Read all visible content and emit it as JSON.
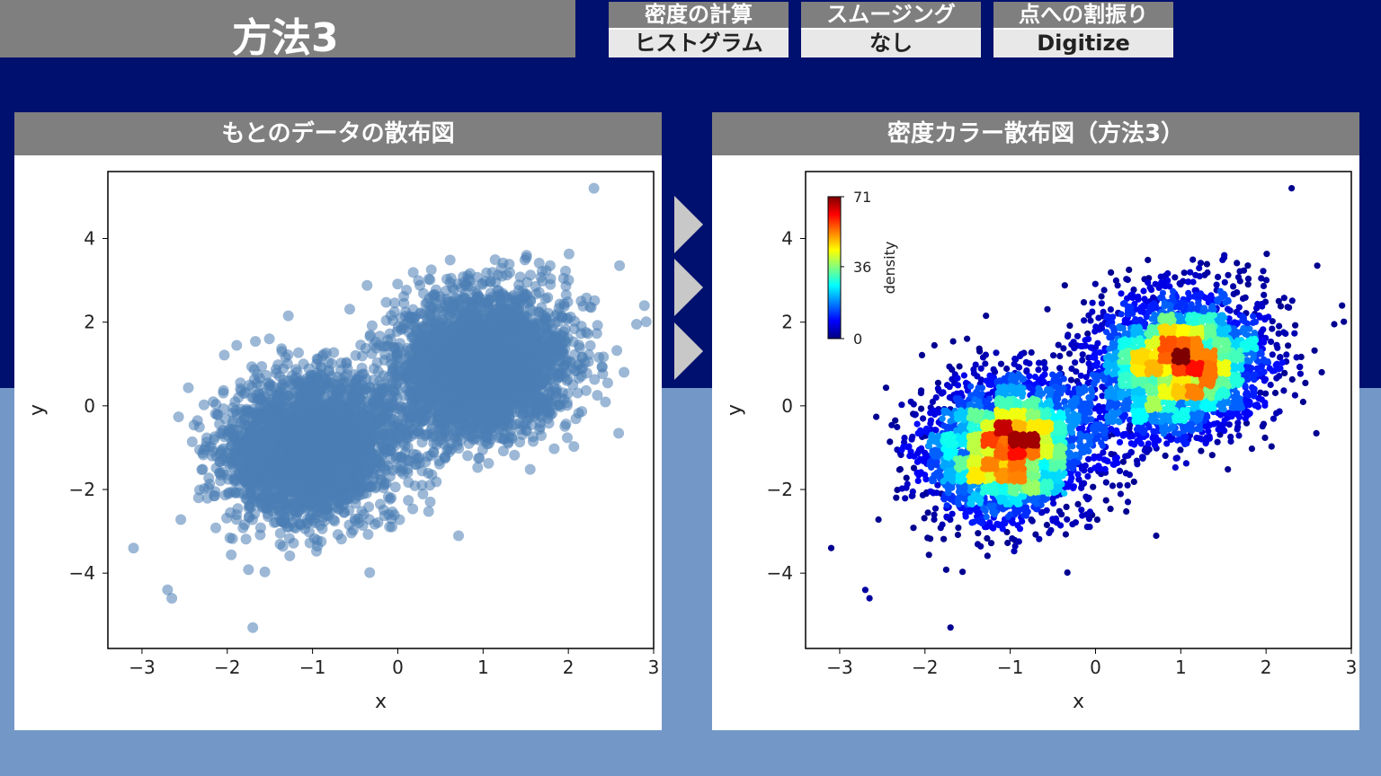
{
  "header": {
    "title": "方法3",
    "tags": [
      {
        "label": "密度の計算",
        "value": "ヒストグラム"
      },
      {
        "label": "スムージング",
        "value": "なし"
      },
      {
        "label": "点への割振り",
        "value": "Digitize"
      }
    ]
  },
  "panels": {
    "left_title": "もとのデータの散布図",
    "right_title": "密度カラー散布図（方法3）"
  },
  "colors": {
    "point_blue": "#4a7db5",
    "panel_gray": "#7f7f7f",
    "navy": "#00106e",
    "light_blue": "#7398c7",
    "colormap": [
      "#00007f",
      "#0000ff",
      "#007fff",
      "#00ffff",
      "#7fff7f",
      "#ffff00",
      "#ff7f00",
      "#ff0000",
      "#7f0000"
    ]
  },
  "chart_data": [
    {
      "type": "scatter",
      "title": "",
      "xlabel": "x",
      "ylabel": "y",
      "xlim": [
        -3.4,
        3.0
      ],
      "ylim": [
        -5.8,
        5.6
      ],
      "xticks": [
        "−3",
        "−2",
        "−1",
        "0",
        "1",
        "2",
        "3"
      ],
      "xtick_values": [
        -3,
        -2,
        -1,
        0,
        1,
        2,
        3
      ],
      "yticks": [
        "−4",
        "−2",
        "0",
        "2",
        "4"
      ],
      "ytick_values": [
        -4,
        -2,
        0,
        2,
        4
      ],
      "clusters": [
        {
          "center": [
            -1.0,
            -1.0
          ],
          "std": [
            0.5,
            0.85
          ],
          "corr": 0.1,
          "share": 0.5
        },
        {
          "center": [
            1.0,
            1.0
          ],
          "std": [
            0.5,
            0.85
          ],
          "corr": 0.1,
          "share": 0.5
        }
      ],
      "outliers": [
        [
          -3.1,
          -3.4
        ],
        [
          -2.7,
          -4.4
        ],
        [
          -2.65,
          -4.6
        ],
        [
          -1.7,
          -5.3
        ],
        [
          2.3,
          5.2
        ],
        [
          2.8,
          1.95
        ],
        [
          2.6,
          3.35
        ]
      ]
    },
    {
      "type": "scatter",
      "title": "",
      "xlabel": "x",
      "ylabel": "y",
      "xlim": [
        -3.4,
        3.0
      ],
      "ylim": [
        -5.8,
        5.6
      ],
      "xticks": [
        "−3",
        "−2",
        "−1",
        "0",
        "1",
        "2",
        "3"
      ],
      "xtick_values": [
        -3,
        -2,
        -1,
        0,
        1,
        2,
        3
      ],
      "yticks": [
        "−4",
        "−2",
        "0",
        "2",
        "4"
      ],
      "ytick_values": [
        -4,
        -2,
        0,
        2,
        4
      ],
      "colorbar": {
        "label": "density",
        "ticks": [
          "71",
          "36",
          "0"
        ],
        "tick_values": [
          71,
          36,
          0
        ],
        "min": 0,
        "max": 71
      },
      "clusters": [
        {
          "center": [
            -1.0,
            -1.0
          ],
          "std": [
            0.5,
            0.85
          ],
          "corr": 0.1,
          "share": 0.5
        },
        {
          "center": [
            1.0,
            1.0
          ],
          "std": [
            0.5,
            0.85
          ],
          "corr": 0.1,
          "share": 0.5
        }
      ],
      "outliers": [
        [
          -3.1,
          -3.4
        ],
        [
          -2.7,
          -4.4
        ],
        [
          -2.65,
          -4.6
        ],
        [
          -1.7,
          -5.3
        ],
        [
          2.3,
          5.2
        ],
        [
          2.8,
          1.95
        ],
        [
          2.6,
          3.35
        ]
      ]
    }
  ]
}
